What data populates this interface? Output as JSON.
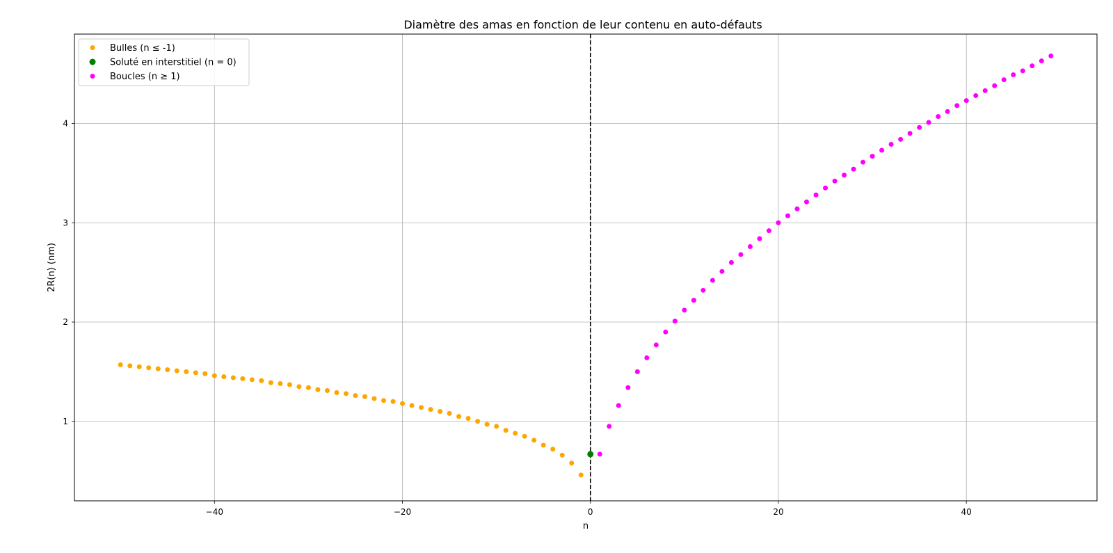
{
  "chart_data": {
    "type": "scatter",
    "title": "Diamètre des amas en fonction de leur contenu en auto-défauts",
    "xlabel": "n",
    "ylabel": "2R(n) (nm)",
    "xlim": [
      -54.9,
      53.9
    ],
    "ylim": [
      0.2,
      4.9
    ],
    "x_ticks": [
      -40,
      -20,
      0,
      20,
      40
    ],
    "x_tick_labels": [
      "−40",
      "−20",
      "0",
      "20",
      "40"
    ],
    "y_ticks": [
      1,
      2,
      3,
      4
    ],
    "y_tick_labels": [
      "1",
      "2",
      "3",
      "4"
    ],
    "grid": true,
    "legend_position": "upper-left",
    "vline": {
      "x": 0,
      "style": "dashed",
      "color": "#000000"
    },
    "series": [
      {
        "name": "Bulles (n ≤ -1)",
        "color": "#ffa500",
        "x": [
          -50,
          -49,
          -48,
          -47,
          -46,
          -45,
          -44,
          -43,
          -42,
          -41,
          -40,
          -39,
          -38,
          -37,
          -36,
          -35,
          -34,
          -33,
          -32,
          -31,
          -30,
          -29,
          -28,
          -27,
          -26,
          -25,
          -24,
          -23,
          -22,
          -21,
          -20,
          -19,
          -18,
          -17,
          -16,
          -15,
          -14,
          -13,
          -12,
          -11,
          -10,
          -9,
          -8,
          -7,
          -6,
          -5,
          -4,
          -3,
          -2,
          -1
        ],
        "y": [
          1.57,
          1.56,
          1.55,
          1.54,
          1.53,
          1.52,
          1.51,
          1.5,
          1.49,
          1.48,
          1.46,
          1.45,
          1.44,
          1.43,
          1.42,
          1.41,
          1.39,
          1.38,
          1.37,
          1.35,
          1.34,
          1.32,
          1.31,
          1.29,
          1.28,
          1.26,
          1.25,
          1.23,
          1.21,
          1.2,
          1.18,
          1.16,
          1.14,
          1.12,
          1.1,
          1.08,
          1.05,
          1.03,
          1.0,
          0.97,
          0.95,
          0.91,
          0.88,
          0.85,
          0.81,
          0.76,
          0.72,
          0.66,
          0.58,
          0.46
        ]
      },
      {
        "name": "Soluté en interstitiel (n = 0)",
        "color": "#008000",
        "x": [
          0
        ],
        "y": [
          0.67
        ]
      },
      {
        "name": "Boucles (n ≥ 1)",
        "color": "#ff00ff",
        "x": [
          1,
          2,
          3,
          4,
          5,
          6,
          7,
          8,
          9,
          10,
          11,
          12,
          13,
          14,
          15,
          16,
          17,
          18,
          19,
          20,
          21,
          22,
          23,
          24,
          25,
          26,
          27,
          28,
          29,
          30,
          31,
          32,
          33,
          34,
          35,
          36,
          37,
          38,
          39,
          40,
          41,
          42,
          43,
          44,
          45,
          46,
          47,
          48,
          49
        ],
        "y": [
          0.67,
          0.95,
          1.16,
          1.34,
          1.5,
          1.64,
          1.77,
          1.9,
          2.01,
          2.12,
          2.22,
          2.32,
          2.42,
          2.51,
          2.6,
          2.68,
          2.76,
          2.84,
          2.92,
          3.0,
          3.07,
          3.14,
          3.21,
          3.28,
          3.35,
          3.42,
          3.48,
          3.54,
          3.61,
          3.67,
          3.73,
          3.79,
          3.84,
          3.9,
          3.96,
          4.01,
          4.07,
          4.12,
          4.18,
          4.23,
          4.28,
          4.33,
          4.38,
          4.44,
          4.49,
          4.53,
          4.58,
          4.63,
          4.68
        ]
      }
    ]
  }
}
